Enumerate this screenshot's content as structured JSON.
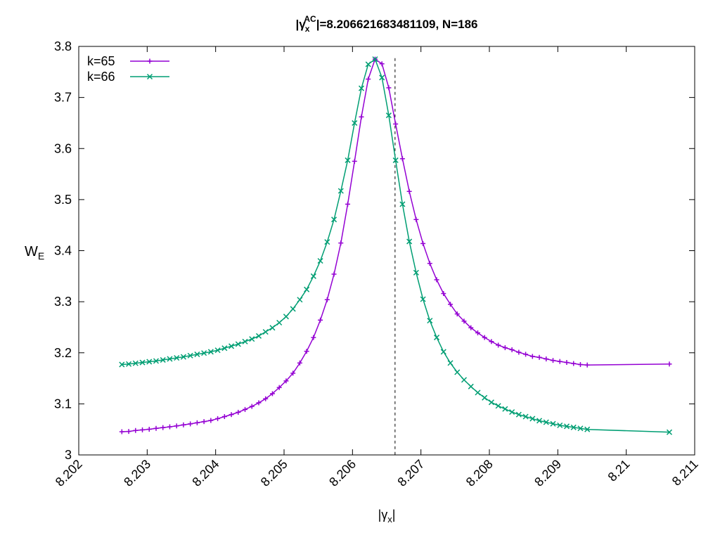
{
  "chart_data": {
    "type": "line",
    "title_prefix": "|γ",
    "title_sub": "x",
    "title_sup": "AC",
    "title_suffix": "|=8.206621683481109, N=186",
    "xlabel_prefix": "|γ",
    "xlabel_sub": "x",
    "xlabel_suffix": "|",
    "ylabel_main": "W",
    "ylabel_sub": "E",
    "xlim": [
      8.202,
      8.211
    ],
    "ylim": [
      3.0,
      3.8
    ],
    "x_ticks": [
      "8.202",
      "8.203",
      "8.204",
      "8.205",
      "8.206",
      "8.207",
      "8.208",
      "8.209",
      "8.21",
      "8.211"
    ],
    "x_tick_values": [
      8.202,
      8.203,
      8.204,
      8.205,
      8.206,
      8.207,
      8.208,
      8.209,
      8.21,
      8.211
    ],
    "y_ticks": [
      "3",
      "3.1",
      "3.2",
      "3.3",
      "3.4",
      "3.5",
      "3.6",
      "3.7",
      "3.8"
    ],
    "y_tick_values": [
      3.0,
      3.1,
      3.2,
      3.3,
      3.4,
      3.5,
      3.6,
      3.7,
      3.8
    ],
    "vertical_line_x": 8.206621683481108,
    "legend_position": "top-left",
    "grid": false,
    "series": [
      {
        "name": "k=65",
        "color": "#9400d3",
        "marker": "plus",
        "points": [
          [
            8.20263,
            3.0455
          ],
          [
            8.20273,
            3.046
          ],
          [
            8.20283,
            3.0478
          ],
          [
            8.20293,
            3.049
          ],
          [
            8.20303,
            3.0503
          ],
          [
            8.20313,
            3.052
          ],
          [
            8.20323,
            3.0535
          ],
          [
            8.20333,
            3.055
          ],
          [
            8.20343,
            3.0568
          ],
          [
            8.20353,
            3.0588
          ],
          [
            8.20363,
            3.0608
          ],
          [
            8.20373,
            3.063
          ],
          [
            8.20383,
            3.0652
          ],
          [
            8.20393,
            3.0675
          ],
          [
            8.20403,
            3.071
          ],
          [
            8.20413,
            3.075
          ],
          [
            8.20423,
            3.079
          ],
          [
            8.20433,
            3.0835
          ],
          [
            8.20443,
            3.089
          ],
          [
            8.20453,
            3.095
          ],
          [
            8.20463,
            3.102
          ],
          [
            8.20473,
            3.11
          ],
          [
            8.20483,
            3.12
          ],
          [
            8.20493,
            3.132
          ],
          [
            8.20503,
            3.145
          ],
          [
            8.20513,
            3.16
          ],
          [
            8.20523,
            3.18
          ],
          [
            8.20533,
            3.203
          ],
          [
            8.20543,
            3.23
          ],
          [
            8.20553,
            3.264
          ],
          [
            8.20563,
            3.304
          ],
          [
            8.20573,
            3.354
          ],
          [
            8.20583,
            3.415
          ],
          [
            8.20593,
            3.491
          ],
          [
            8.20603,
            3.575
          ],
          [
            8.20613,
            3.662
          ],
          [
            8.20623,
            3.736
          ],
          [
            8.20633,
            3.775
          ],
          [
            8.20643,
            3.766
          ],
          [
            8.20653,
            3.719
          ],
          [
            8.20663,
            3.648
          ],
          [
            8.20673,
            3.58
          ],
          [
            8.20683,
            3.516
          ],
          [
            8.20693,
            3.461
          ],
          [
            8.20703,
            3.414
          ],
          [
            8.20713,
            3.375
          ],
          [
            8.20723,
            3.343
          ],
          [
            8.20733,
            3.316
          ],
          [
            8.20743,
            3.295
          ],
          [
            8.20753,
            3.276
          ],
          [
            8.20763,
            3.262
          ],
          [
            8.20773,
            3.249
          ],
          [
            8.20783,
            3.239
          ],
          [
            8.20793,
            3.23
          ],
          [
            8.20803,
            3.222
          ],
          [
            8.20813,
            3.215
          ],
          [
            8.20823,
            3.21
          ],
          [
            8.20833,
            3.206
          ],
          [
            8.20843,
            3.201
          ],
          [
            8.20853,
            3.197
          ],
          [
            8.20863,
            3.193
          ],
          [
            8.20873,
            3.191
          ],
          [
            8.20883,
            3.188
          ],
          [
            8.20893,
            3.185
          ],
          [
            8.20903,
            3.183
          ],
          [
            8.20913,
            3.181
          ],
          [
            8.20923,
            3.179
          ],
          [
            8.20933,
            3.177
          ],
          [
            8.20943,
            3.176
          ],
          [
            8.21063,
            3.178
          ]
        ]
      },
      {
        "name": "k=66",
        "color": "#009e73",
        "marker": "cross",
        "points": [
          [
            8.20263,
            3.177
          ],
          [
            8.20273,
            3.178
          ],
          [
            8.20283,
            3.1795
          ],
          [
            8.20293,
            3.181
          ],
          [
            8.20303,
            3.1825
          ],
          [
            8.20313,
            3.184
          ],
          [
            8.20323,
            3.186
          ],
          [
            8.20333,
            3.188
          ],
          [
            8.20343,
            3.19
          ],
          [
            8.20353,
            3.192
          ],
          [
            8.20363,
            3.1945
          ],
          [
            8.20373,
            3.197
          ],
          [
            8.20383,
            3.1995
          ],
          [
            8.20393,
            3.202
          ],
          [
            8.20403,
            3.205
          ],
          [
            8.20413,
            3.209
          ],
          [
            8.20423,
            3.213
          ],
          [
            8.20433,
            3.217
          ],
          [
            8.20443,
            3.222
          ],
          [
            8.20453,
            3.227
          ],
          [
            8.20463,
            3.233
          ],
          [
            8.20473,
            3.241
          ],
          [
            8.20483,
            3.249
          ],
          [
            8.20493,
            3.259
          ],
          [
            8.20503,
            3.271
          ],
          [
            8.20513,
            3.286
          ],
          [
            8.20523,
            3.304
          ],
          [
            8.20533,
            3.324
          ],
          [
            8.20543,
            3.35
          ],
          [
            8.20553,
            3.38
          ],
          [
            8.20563,
            3.417
          ],
          [
            8.20573,
            3.461
          ],
          [
            8.20583,
            3.517
          ],
          [
            8.20593,
            3.577
          ],
          [
            8.20603,
            3.65
          ],
          [
            8.20613,
            3.718
          ],
          [
            8.20623,
            3.765
          ],
          [
            8.20633,
            3.775
          ],
          [
            8.20643,
            3.739
          ],
          [
            8.20653,
            3.665
          ],
          [
            8.20663,
            3.577
          ],
          [
            8.20673,
            3.491
          ],
          [
            8.20683,
            3.418
          ],
          [
            8.20693,
            3.357
          ],
          [
            8.20703,
            3.305
          ],
          [
            8.20713,
            3.263
          ],
          [
            8.20723,
            3.23
          ],
          [
            8.20733,
            3.202
          ],
          [
            8.20743,
            3.18
          ],
          [
            8.20753,
            3.162
          ],
          [
            8.20763,
            3.147
          ],
          [
            8.20773,
            3.134
          ],
          [
            8.20783,
            3.122
          ],
          [
            8.20793,
            3.112
          ],
          [
            8.20803,
            3.103
          ],
          [
            8.20813,
            3.096
          ],
          [
            8.20823,
            3.09
          ],
          [
            8.20833,
            3.084
          ],
          [
            8.20843,
            3.079
          ],
          [
            8.20853,
            3.075
          ],
          [
            8.20863,
            3.071
          ],
          [
            8.20873,
            3.067
          ],
          [
            8.20883,
            3.064
          ],
          [
            8.20893,
            3.061
          ],
          [
            8.20903,
            3.058
          ],
          [
            8.20913,
            3.056
          ],
          [
            8.20923,
            3.054
          ],
          [
            8.20933,
            3.052
          ],
          [
            8.20943,
            3.05
          ],
          [
            8.21063,
            3.0445
          ]
        ]
      }
    ]
  }
}
